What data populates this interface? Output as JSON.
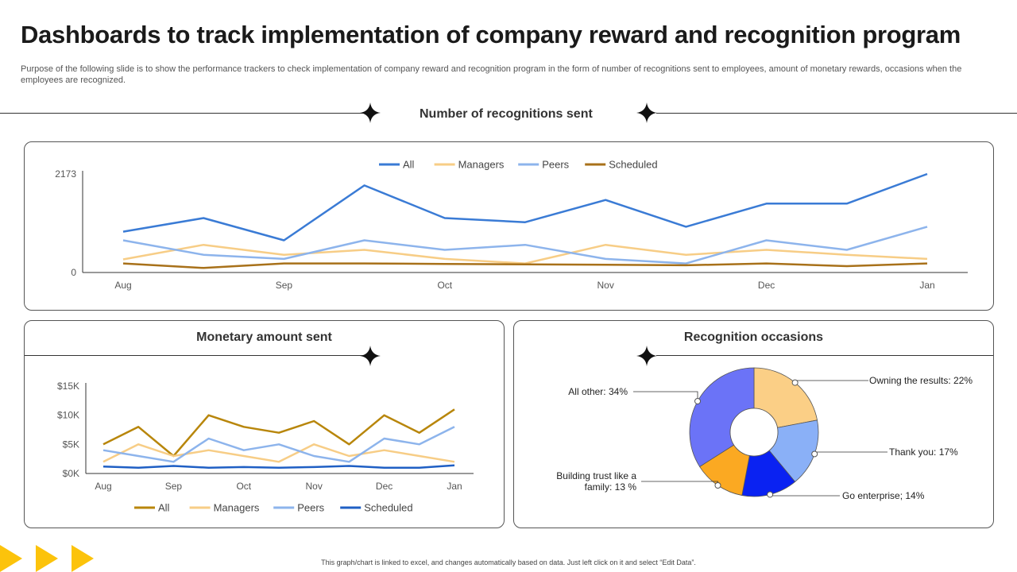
{
  "header": {
    "title": "Dashboards to track implementation of company reward and recognition program",
    "subtitle": "Purpose of the following slide is to show the performance trackers to check implementation of company reward and recognition program in the form of number of recognitions sent to employees, amount of monetary rewards, occasions when the employees are recognized."
  },
  "sections": {
    "recognitions_title": "Number of recognitions sent",
    "monetary_title": "Monetary amount sent",
    "occasions_title": "Recognition occasions"
  },
  "footer": {
    "note": "This graph/chart is linked to excel, and changes automatically based on data. Just left click on it and select “Edit Data”."
  },
  "colors": {
    "all": "#3a7bd5",
    "managers": "#f7cd86",
    "peers": "#8db4ec",
    "scheduled": "#a8711a",
    "all_money": "#b8860b",
    "scheduled_money": "#1f5fc4",
    "accent_yellow": "#fcc30b"
  },
  "chart_data": [
    {
      "type": "line",
      "title": "Number of recognitions sent",
      "x_labels": [
        "Aug",
        "Sep",
        "Oct",
        "Nov",
        "Dec",
        "Jan"
      ],
      "x": [
        0,
        1,
        2,
        3,
        4,
        5,
        6,
        7,
        8,
        9,
        10
      ],
      "ylim": [
        0,
        2173
      ],
      "y_tick_labels": [
        "0",
        "2173"
      ],
      "legend_position": "top",
      "series": [
        {
          "name": "All",
          "color_key": "all",
          "values": [
            900,
            1200,
            710,
            1920,
            1200,
            1110,
            1600,
            1010,
            1520,
            1520,
            2173
          ]
        },
        {
          "name": "Managers",
          "color_key": "managers",
          "values": [
            290,
            610,
            390,
            500,
            300,
            200,
            610,
            390,
            500,
            390,
            300
          ]
        },
        {
          "name": "Peers",
          "color_key": "peers",
          "values": [
            710,
            390,
            300,
            710,
            500,
            610,
            300,
            200,
            710,
            500,
            1010
          ]
        },
        {
          "name": "Scheduled",
          "color_key": "scheduled",
          "values": [
            200,
            100,
            200,
            200,
            190,
            180,
            170,
            160,
            200,
            140,
            200
          ]
        }
      ]
    },
    {
      "type": "line",
      "title": "Monetary amount sent",
      "x_labels": [
        "Aug",
        "Sep",
        "Oct",
        "Nov",
        "Dec",
        "Jan"
      ],
      "x": [
        0,
        1,
        2,
        3,
        4,
        5,
        6,
        7,
        8,
        9,
        10
      ],
      "ylim": [
        0,
        15000
      ],
      "y_tick_labels": [
        "$0K",
        "$5K",
        "$10K",
        "$15K"
      ],
      "y_ticks": [
        0,
        5000,
        10000,
        15000
      ],
      "legend_position": "bottom",
      "series": [
        {
          "name": "All",
          "color_key": "all_money",
          "values": [
            5000,
            8000,
            3000,
            10000,
            8000,
            7000,
            9000,
            5000,
            10000,
            7000,
            11000
          ]
        },
        {
          "name": "Managers",
          "color_key": "managers",
          "values": [
            2000,
            5000,
            3000,
            4000,
            3000,
            2000,
            5000,
            3000,
            4000,
            3000,
            2000
          ]
        },
        {
          "name": "Peers",
          "color_key": "peers",
          "values": [
            4000,
            3000,
            2000,
            6000,
            4000,
            5000,
            3000,
            2000,
            6000,
            5000,
            8000
          ]
        },
        {
          "name": "Scheduled",
          "color_key": "scheduled_money",
          "values": [
            1200,
            1000,
            1300,
            1000,
            1100,
            1000,
            1100,
            1300,
            1000,
            1000,
            1400
          ]
        }
      ]
    },
    {
      "type": "pie",
      "title": "Recognition occasions",
      "donut": true,
      "slices": [
        {
          "label": "Owning the results: 22%",
          "value": 22,
          "color": "#fbcf86"
        },
        {
          "label": "Thank you: 17%",
          "value": 17,
          "color": "#8ab0f7"
        },
        {
          "label": "Go enterprise;  14%",
          "value": 14,
          "color": "#0a22f2"
        },
        {
          "label": "Building trust like a family: 13 %",
          "label_lines": [
            "Building trust like a",
            "family: 13 %"
          ],
          "value": 13,
          "color": "#fba922"
        },
        {
          "label": "All other: 34%",
          "value": 34,
          "color": "#6b73f7"
        }
      ]
    }
  ]
}
